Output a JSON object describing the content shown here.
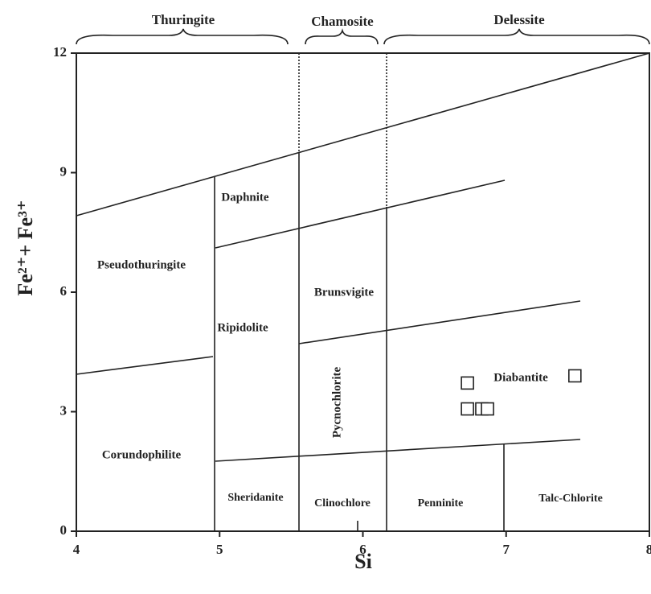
{
  "chart_data": {
    "type": "scatter",
    "xlabel": "Si",
    "ylabel": "Fe²⁺+ Fe³⁺",
    "groups": [
      "Thuringite",
      "Chamosite",
      "Delessite"
    ],
    "regions": [
      "Pseudothuringite",
      "Daphnite",
      "Ripidolite",
      "Brunsvigite",
      "Pycnochlorite",
      "Corundophilite",
      "Sheridanite",
      "Clinochlore",
      "Penninite",
      "Talc-Chlorite",
      "Diabantite"
    ],
    "x": [
      6.73,
      6.73,
      6.83,
      6.87,
      7.48
    ],
    "values": [
      3.72,
      3.07,
      3.07,
      3.07,
      3.9
    ],
    "color": "#222222",
    "xlim": [
      4,
      8
    ],
    "xticks": [
      4,
      5,
      6,
      7,
      8
    ],
    "ylim": [
      0,
      12
    ],
    "yticks": [
      0,
      3,
      6,
      9,
      12
    ]
  }
}
